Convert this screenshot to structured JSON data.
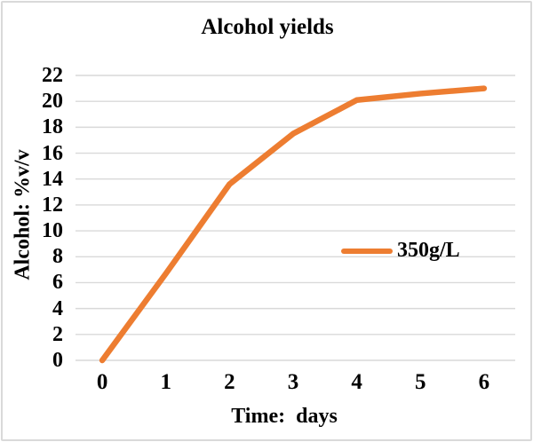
{
  "colors": {
    "series_line": "#ED7D31",
    "gridline": "#D9D9D9",
    "border": "#D9D9D9",
    "text": "#000000",
    "background": "#FFFFFF"
  },
  "chart_data": {
    "type": "line",
    "title": "Alcohol yields",
    "xlabel": "Time:  days",
    "ylabel": "Alcohol: %v/v",
    "x": [
      0,
      1,
      2,
      3,
      4,
      5,
      6
    ],
    "xticks": [
      0,
      1,
      2,
      3,
      4,
      5,
      6
    ],
    "yticks": [
      0,
      2,
      4,
      6,
      8,
      10,
      12,
      14,
      16,
      18,
      20,
      22
    ],
    "xlim": [
      -0.42,
      6.49
    ],
    "ylim": [
      0,
      22
    ],
    "grid": "horizontal-only",
    "legend_position": "inside-right-middle",
    "series": [
      {
        "name": "350g/L",
        "color": "#ED7D31",
        "values": [
          0,
          6.7,
          13.6,
          17.5,
          20.1,
          20.6,
          21.0
        ]
      }
    ]
  }
}
